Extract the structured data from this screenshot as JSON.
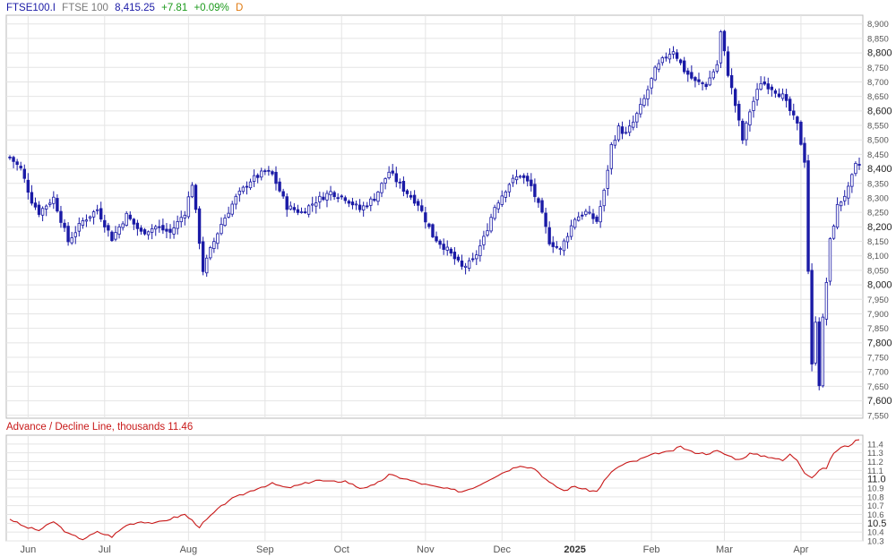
{
  "header": {
    "symbol": "FTSE100.I",
    "name": "FTSE 100",
    "last": "8,415.25",
    "change": "+7.81",
    "change_pct": "+0.09%",
    "period": "D"
  },
  "colors": {
    "candle": "#1a1aa6",
    "ad_line": "#c81818",
    "grid": "#e4e4e4",
    "frame": "#b8b8b8",
    "up": "#1c9a1c",
    "period": "#e07a10"
  },
  "chart_data": [
    {
      "type": "candlestick",
      "title": "FTSE100.I FTSE 100",
      "ylim": [
        7540,
        8930
      ],
      "grid": true,
      "y_ticks": [
        {
          "v": 7550,
          "label": "7,550",
          "major": false
        },
        {
          "v": 7600,
          "label": "7,600",
          "major": true
        },
        {
          "v": 7650,
          "label": "7,650",
          "major": false
        },
        {
          "v": 7700,
          "label": "7,700",
          "major": false
        },
        {
          "v": 7750,
          "label": "7,750",
          "major": false
        },
        {
          "v": 7800,
          "label": "7,800",
          "major": true
        },
        {
          "v": 7850,
          "label": "7,850",
          "major": false
        },
        {
          "v": 7900,
          "label": "7,900",
          "major": false
        },
        {
          "v": 7950,
          "label": "7,950",
          "major": false
        },
        {
          "v": 8000,
          "label": "8,000",
          "major": true
        },
        {
          "v": 8050,
          "label": "8,050",
          "major": false
        },
        {
          "v": 8100,
          "label": "8,100",
          "major": false
        },
        {
          "v": 8150,
          "label": "8,150",
          "major": false
        },
        {
          "v": 8200,
          "label": "8,200",
          "major": true
        },
        {
          "v": 8250,
          "label": "8,250",
          "major": false
        },
        {
          "v": 8300,
          "label": "8,300",
          "major": false
        },
        {
          "v": 8350,
          "label": "8,350",
          "major": false
        },
        {
          "v": 8400,
          "label": "8,400",
          "major": true
        },
        {
          "v": 8450,
          "label": "8,450",
          "major": false
        },
        {
          "v": 8500,
          "label": "8,500",
          "major": false
        },
        {
          "v": 8550,
          "label": "8,550",
          "major": false
        },
        {
          "v": 8600,
          "label": "8,600",
          "major": true
        },
        {
          "v": 8650,
          "label": "8,650",
          "major": false
        },
        {
          "v": 8700,
          "label": "8,700",
          "major": false
        },
        {
          "v": 8750,
          "label": "8,750",
          "major": false
        },
        {
          "v": 8800,
          "label": "8,800",
          "major": true
        },
        {
          "v": 8850,
          "label": "8,850",
          "major": false
        },
        {
          "v": 8900,
          "label": "8,900",
          "major": false
        }
      ],
      "x_labels": [
        {
          "label": "Jun",
          "i": 5,
          "major": false
        },
        {
          "label": "Jul",
          "i": 26,
          "major": false
        },
        {
          "label": "Aug",
          "i": 49,
          "major": false
        },
        {
          "label": "Sep",
          "i": 70,
          "major": false
        },
        {
          "label": "Oct",
          "i": 91,
          "major": false
        },
        {
          "label": "Nov",
          "i": 114,
          "major": false
        },
        {
          "label": "Dec",
          "i": 135,
          "major": false
        },
        {
          "label": "2025",
          "i": 155,
          "major": true
        },
        {
          "label": "Feb",
          "i": 176,
          "major": false
        },
        {
          "label": "Mar",
          "i": 196,
          "major": false
        },
        {
          "label": "Apr",
          "i": 217,
          "major": false
        }
      ],
      "anchors": [
        [
          0,
          8440
        ],
        [
          3,
          8400
        ],
        [
          6,
          8290
        ],
        [
          8,
          8250
        ],
        [
          12,
          8300
        ],
        [
          16,
          8150
        ],
        [
          20,
          8220
        ],
        [
          24,
          8260
        ],
        [
          28,
          8160
        ],
        [
          32,
          8240
        ],
        [
          36,
          8180
        ],
        [
          40,
          8200
        ],
        [
          44,
          8180
        ],
        [
          48,
          8250
        ],
        [
          50,
          8350
        ],
        [
          53,
          8050
        ],
        [
          55,
          8120
        ],
        [
          58,
          8210
        ],
        [
          62,
          8300
        ],
        [
          66,
          8360
        ],
        [
          70,
          8390
        ],
        [
          72,
          8380
        ],
        [
          76,
          8270
        ],
        [
          80,
          8250
        ],
        [
          84,
          8290
        ],
        [
          88,
          8320
        ],
        [
          92,
          8300
        ],
        [
          96,
          8260
        ],
        [
          100,
          8300
        ],
        [
          104,
          8390
        ],
        [
          108,
          8330
        ],
        [
          112,
          8280
        ],
        [
          116,
          8170
        ],
        [
          120,
          8120
        ],
        [
          124,
          8060
        ],
        [
          127,
          8080
        ],
        [
          130,
          8160
        ],
        [
          133,
          8270
        ],
        [
          137,
          8350
        ],
        [
          140,
          8380
        ],
        [
          143,
          8340
        ],
        [
          146,
          8240
        ],
        [
          148,
          8150
        ],
        [
          151,
          8120
        ],
        [
          155,
          8230
        ],
        [
          158,
          8250
        ],
        [
          161,
          8220
        ],
        [
          163,
          8320
        ],
        [
          165,
          8480
        ],
        [
          167,
          8540
        ],
        [
          169,
          8520
        ],
        [
          171,
          8560
        ],
        [
          174,
          8640
        ],
        [
          177,
          8740
        ],
        [
          180,
          8790
        ],
        [
          182,
          8810
        ],
        [
          185,
          8740
        ],
        [
          188,
          8700
        ],
        [
          191,
          8690
        ],
        [
          194,
          8760
        ],
        [
          195,
          8870
        ],
        [
          197,
          8730
        ],
        [
          199,
          8620
        ],
        [
          201,
          8500
        ],
        [
          203,
          8600
        ],
        [
          206,
          8700
        ],
        [
          209,
          8680
        ],
        [
          212,
          8650
        ],
        [
          214,
          8600
        ],
        [
          216,
          8550
        ],
        [
          218,
          8430
        ],
        [
          219,
          8050
        ],
        [
          220,
          7720
        ],
        [
          221,
          7880
        ],
        [
          222,
          7660
        ],
        [
          223,
          7880
        ],
        [
          224,
          8010
        ],
        [
          225,
          8150
        ],
        [
          227,
          8270
        ],
        [
          230,
          8330
        ],
        [
          232,
          8410
        ],
        [
          233,
          8415.25
        ]
      ],
      "note": "candle values in index points; x is trading-day index"
    },
    {
      "type": "line",
      "title": "Advance / Decline Line, thousands",
      "last_value": "11.46",
      "ylim": [
        10.3,
        11.5
      ],
      "y_ticks": [
        {
          "v": 10.3,
          "label": "10.3",
          "major": false
        },
        {
          "v": 10.4,
          "label": "10.4",
          "major": false
        },
        {
          "v": 10.5,
          "label": "10.5",
          "major": true
        },
        {
          "v": 10.6,
          "label": "10.6",
          "major": false
        },
        {
          "v": 10.7,
          "label": "10.7",
          "major": false
        },
        {
          "v": 10.8,
          "label": "10.8",
          "major": false
        },
        {
          "v": 10.9,
          "label": "10.9",
          "major": false
        },
        {
          "v": 11.0,
          "label": "11.0",
          "major": true
        },
        {
          "v": 11.1,
          "label": "11.1",
          "major": false
        },
        {
          "v": 11.2,
          "label": "11.2",
          "major": false
        },
        {
          "v": 11.3,
          "label": "11.3",
          "major": false
        },
        {
          "v": 11.4,
          "label": "11.4",
          "major": false
        }
      ],
      "anchors": [
        [
          0,
          10.55
        ],
        [
          4,
          10.46
        ],
        [
          8,
          10.42
        ],
        [
          12,
          10.52
        ],
        [
          16,
          10.38
        ],
        [
          20,
          10.32
        ],
        [
          24,
          10.4
        ],
        [
          28,
          10.35
        ],
        [
          32,
          10.48
        ],
        [
          36,
          10.52
        ],
        [
          40,
          10.5
        ],
        [
          44,
          10.55
        ],
        [
          48,
          10.6
        ],
        [
          52,
          10.46
        ],
        [
          56,
          10.62
        ],
        [
          60,
          10.76
        ],
        [
          64,
          10.83
        ],
        [
          68,
          10.9
        ],
        [
          72,
          10.95
        ],
        [
          76,
          10.9
        ],
        [
          80,
          10.94
        ],
        [
          84,
          10.99
        ],
        [
          88,
          10.97
        ],
        [
          92,
          10.98
        ],
        [
          96,
          10.9
        ],
        [
          100,
          10.93
        ],
        [
          104,
          11.05
        ],
        [
          108,
          11.01
        ],
        [
          112,
          10.96
        ],
        [
          116,
          10.92
        ],
        [
          120,
          10.89
        ],
        [
          124,
          10.86
        ],
        [
          128,
          10.92
        ],
        [
          132,
          11.01
        ],
        [
          136,
          11.09
        ],
        [
          140,
          11.16
        ],
        [
          144,
          11.12
        ],
        [
          148,
          10.96
        ],
        [
          152,
          10.87
        ],
        [
          155,
          10.92
        ],
        [
          158,
          10.88
        ],
        [
          161,
          10.86
        ],
        [
          163,
          10.98
        ],
        [
          166,
          11.12
        ],
        [
          169,
          11.18
        ],
        [
          172,
          11.21
        ],
        [
          175,
          11.26
        ],
        [
          178,
          11.3
        ],
        [
          181,
          11.31
        ],
        [
          184,
          11.37
        ],
        [
          187,
          11.31
        ],
        [
          191,
          11.29
        ],
        [
          194,
          11.32
        ],
        [
          197,
          11.27
        ],
        [
          200,
          11.22
        ],
        [
          203,
          11.29
        ],
        [
          206,
          11.27
        ],
        [
          209,
          11.25
        ],
        [
          212,
          11.21
        ],
        [
          214,
          11.28
        ],
        [
          216,
          11.22
        ],
        [
          218,
          11.08
        ],
        [
          220,
          11.02
        ],
        [
          222,
          11.1
        ],
        [
          224,
          11.13
        ],
        [
          226,
          11.3
        ],
        [
          228,
          11.36
        ],
        [
          230,
          11.38
        ],
        [
          233,
          11.46
        ]
      ],
      "color": "#c81818"
    }
  ]
}
